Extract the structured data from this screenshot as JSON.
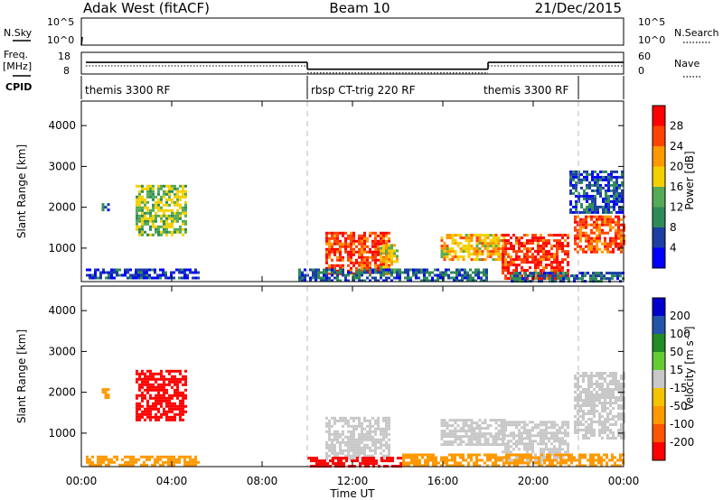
{
  "header": {
    "radar": "Adak West (fitACF)",
    "beam": "Beam 10",
    "date": "21/Dec/2015"
  },
  "panels": {
    "nsky_label": "N.Sky",
    "nsearch_label": "N.Search",
    "nsky_ticks": [
      "10^5",
      "10^0"
    ],
    "nsearch_ticks": [
      "10^5",
      "10^0"
    ],
    "freq_label": "Freq.",
    "freq_unit": "[MHz]",
    "freq_ticks": [
      "18",
      "8"
    ],
    "nave_label": "Nave",
    "nave_ticks": [
      "60",
      "0"
    ],
    "cpid_label": "CPID",
    "cpid_segments": [
      {
        "label": "themis 3300 RF",
        "start": 0,
        "end": 10
      },
      {
        "label": "rbsp CT-trig 220 RF",
        "start": 10,
        "end": 22
      },
      {
        "label": "themis 3300 RF",
        "start": 22,
        "end": 24
      }
    ],
    "freq_segments": [
      {
        "start": 0.2,
        "end": 10,
        "freq_mhz": 13.4
      },
      {
        "start": 10,
        "end": 18,
        "freq_mhz": 10.2
      },
      {
        "start": 18,
        "end": 24,
        "freq_mhz": 13.4
      }
    ]
  },
  "colors": {
    "power": [
      "#0000ff",
      "#1b3fa3",
      "#2e8b57",
      "#55aa55",
      "#f5d000",
      "#ff9900",
      "#ff4400",
      "#ff0000"
    ],
    "velocity": [
      "#0000cc",
      "#2255aa",
      "#228b22",
      "#66cc33",
      "#c8c8c8",
      "#f5c400",
      "#ff9900",
      "#ff5500",
      "#ff0000"
    ],
    "ground_scatter": "#bebebe"
  },
  "chart_data": [
    {
      "type": "heatmap",
      "title": "Power",
      "ylabel": "Slant Range [km]",
      "xlim": [
        0,
        24
      ],
      "ylim": [
        180,
        4600
      ],
      "yticks": [
        1000,
        2000,
        3000,
        4000
      ],
      "colorbar": {
        "label": "Power [dB]",
        "range": [
          0,
          32
        ],
        "ticks": [
          "4",
          "8",
          "12",
          "16",
          "20",
          "24",
          "28"
        ]
      },
      "regions": [
        {
          "t0": 2.4,
          "t1": 4.6,
          "r0": 1350,
          "r1": 2550,
          "value": 15
        },
        {
          "t0": 0.9,
          "t1": 1.2,
          "r0": 1900,
          "r1": 2100,
          "value": 6
        },
        {
          "t0": 0.2,
          "t1": 5.2,
          "r0": 240,
          "r1": 500,
          "value": 5
        },
        {
          "t0": 10.8,
          "t1": 13.6,
          "r0": 400,
          "r1": 1400,
          "value": 27
        },
        {
          "t0": 13.2,
          "t1": 14.0,
          "r0": 400,
          "r1": 1100,
          "value": 18
        },
        {
          "t0": 15.9,
          "t1": 18.7,
          "r0": 700,
          "r1": 1350,
          "value": 20
        },
        {
          "t0": 18.6,
          "t1": 21.6,
          "r0": 280,
          "r1": 1350,
          "value": 28
        },
        {
          "t0": 21.8,
          "t1": 24.0,
          "r0": 900,
          "r1": 1800,
          "value": 26
        },
        {
          "t0": 21.6,
          "t1": 23.9,
          "r0": 1900,
          "r1": 2900,
          "value": 6
        },
        {
          "t0": 9.6,
          "t1": 18.0,
          "r0": 220,
          "r1": 500,
          "value": 7
        },
        {
          "t0": 19.0,
          "t1": 24.0,
          "r0": 220,
          "r1": 420,
          "value": 8
        }
      ]
    },
    {
      "type": "heatmap",
      "title": "Velocity",
      "ylabel": "Slant Range [km]",
      "xlabel": "Time UT",
      "xlim": [
        0,
        24
      ],
      "ylim": [
        180,
        4600
      ],
      "yticks": [
        1000,
        2000,
        3000,
        4000
      ],
      "xticks": [
        "00:00",
        "04:00",
        "08:00",
        "12:00",
        "16:00",
        "20:00",
        "00:00"
      ],
      "colorbar": {
        "label": "Velocity [m s⁻¹]",
        "ticks": [
          "200",
          "100",
          "50",
          "15",
          "-15",
          "-50",
          "-100",
          "-200"
        ]
      },
      "regions": [
        {
          "t0": 2.4,
          "t1": 4.6,
          "r0": 1350,
          "r1": 2550,
          "value": -220
        },
        {
          "t0": 0.9,
          "t1": 1.2,
          "r0": 1900,
          "r1": 2100,
          "value": -60
        },
        {
          "t0": 0.2,
          "t1": 5.2,
          "r0": 240,
          "r1": 450,
          "value": -40
        },
        {
          "t0": 10.8,
          "t1": 13.6,
          "r0": 400,
          "r1": 1400,
          "value": 0
        },
        {
          "t0": 15.9,
          "t1": 18.7,
          "r0": 700,
          "r1": 1350,
          "value": 0
        },
        {
          "t0": 18.6,
          "t1": 21.6,
          "r0": 300,
          "r1": 1300,
          "value": 0
        },
        {
          "t0": 21.8,
          "t1": 24.0,
          "r0": 900,
          "r1": 2500,
          "value": 0
        },
        {
          "t0": 10.0,
          "t1": 14.2,
          "r0": 220,
          "r1": 420,
          "value": -180
        },
        {
          "t0": 14.2,
          "t1": 24.0,
          "r0": 220,
          "r1": 500,
          "value": -60
        }
      ]
    }
  ]
}
